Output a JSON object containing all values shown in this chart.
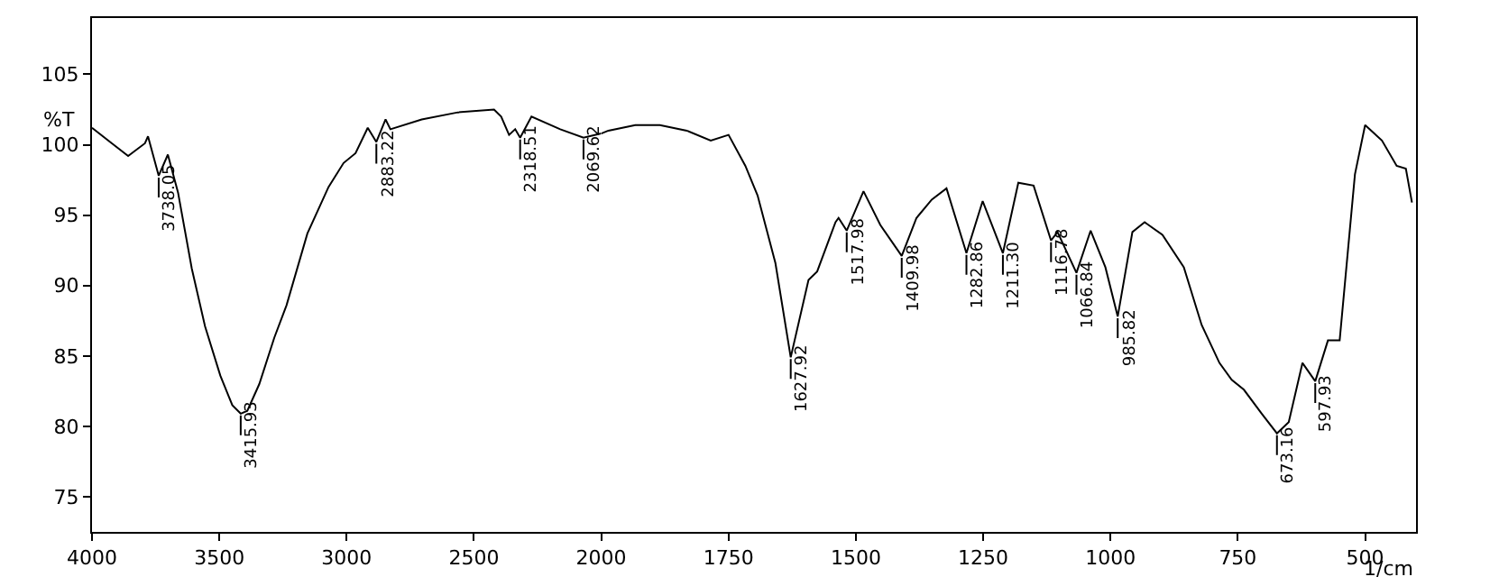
{
  "chart_data": [
    {
      "type": "line",
      "ylabel": "%T",
      "x": [
        4000,
        3922,
        3858,
        3792,
        3780,
        3738.05,
        3702,
        3662,
        3608,
        3556,
        3496,
        3449,
        3415.93,
        3390,
        3343,
        3284,
        3236,
        3154,
        3071,
        3012,
        2965,
        2917,
        2883.22,
        2847,
        2828,
        2705,
        2563,
        2421,
        2393,
        2362,
        2338,
        2318.51,
        2274,
        2161,
        2069.62,
        2000
      ],
      "series": [
        {
          "color": "#000000",
          "values": [
            101.2,
            100.1,
            99.2,
            100.1,
            100.6,
            97.8,
            99.3,
            96.6,
            91.2,
            87.1,
            83.6,
            81.5,
            80.9,
            81.1,
            83.0,
            86.3,
            88.6,
            93.7,
            97.0,
            98.7,
            99.4,
            101.2,
            100.2,
            101.8,
            101.1,
            101.8,
            102.3,
            102.5,
            102.0,
            100.7,
            101.1,
            100.5,
            102.0,
            101.1,
            100.5,
            100.8
          ]
        }
      ],
      "xlim": [
        4000,
        2000
      ],
      "xticks": [
        4000,
        3500,
        3000,
        2500
      ],
      "ylim": [
        72.5,
        109
      ],
      "yticks": [
        75,
        80,
        85,
        90,
        95,
        100,
        105
      ],
      "marker": "none",
      "line_style": "solid",
      "annotations": [
        {
          "text": "3738.05",
          "x": 3738.05,
          "y": 97.8
        },
        {
          "text": "3415.93",
          "x": 3415.93,
          "y": 80.9
        },
        {
          "text": "2883.22",
          "x": 2883.22,
          "y": 100.2
        },
        {
          "text": "2318.51",
          "x": 2318.51,
          "y": 100.5
        },
        {
          "text": "2069.62",
          "x": 2069.62,
          "y": 100.5
        }
      ]
    },
    {
      "type": "line",
      "xlabel": "1/cm",
      "tick_labels": "x",
      "x": [
        2000,
        1986,
        1933,
        1885,
        1832,
        1785,
        1750,
        1717,
        1693,
        1658,
        1627.92,
        1593,
        1576,
        1540,
        1534,
        1517.98,
        1485,
        1452,
        1409.98,
        1381,
        1351,
        1322,
        1282.86,
        1251,
        1211.3,
        1181,
        1151,
        1116.78,
        1104,
        1066.84,
        1039,
        1010,
        985.82,
        957,
        933,
        898,
        856,
        821,
        786,
        762,
        738,
        703,
        673.16,
        650,
        623,
        597.93,
        573,
        550,
        520,
        500,
        467,
        438,
        420,
        408
      ],
      "series": [
        {
          "color": "#000000",
          "values": [
            100.8,
            101.0,
            101.4,
            101.4,
            101.0,
            100.3,
            100.7,
            98.5,
            96.4,
            91.6,
            84.9,
            90.4,
            91.0,
            94.5,
            94.8,
            93.9,
            96.7,
            94.3,
            92.1,
            94.8,
            96.1,
            96.9,
            92.3,
            96.0,
            92.3,
            97.3,
            97.1,
            93.2,
            93.8,
            90.9,
            93.9,
            91.3,
            87.8,
            93.8,
            94.5,
            93.6,
            91.3,
            87.2,
            84.5,
            83.3,
            82.6,
            80.9,
            79.5,
            80.3,
            84.5,
            83.2,
            86.1,
            86.1,
            97.9,
            101.4,
            100.3,
            98.5,
            98.3,
            95.9
          ]
        }
      ],
      "xlim": [
        2000,
        400
      ],
      "xticks": [
        2000,
        1750,
        1500,
        1250,
        1000,
        750,
        500
      ],
      "ylim": [
        72.5,
        109
      ],
      "yticks": [
        75,
        80,
        85,
        90,
        95,
        100,
        105
      ],
      "marker": "none",
      "line_style": "solid",
      "annotations": [
        {
          "text": "1627.92",
          "x": 1627.92,
          "y": 84.9
        },
        {
          "text": "1517.98",
          "x": 1517.98,
          "y": 93.9
        },
        {
          "text": "1409.98",
          "x": 1409.98,
          "y": 92.1
        },
        {
          "text": "1282.86",
          "x": 1282.86,
          "y": 92.3
        },
        {
          "text": "1211.30",
          "x": 1211.3,
          "y": 92.3
        },
        {
          "text": "1116.78",
          "x": 1116.78,
          "y": 93.2
        },
        {
          "text": "1066.84",
          "x": 1066.84,
          "y": 90.9
        },
        {
          "text": "985.82",
          "x": 985.82,
          "y": 87.8
        },
        {
          "text": "673.16",
          "x": 673.16,
          "y": 79.5
        },
        {
          "text": "597.93",
          "x": 597.93,
          "y": 83.2
        }
      ]
    }
  ]
}
